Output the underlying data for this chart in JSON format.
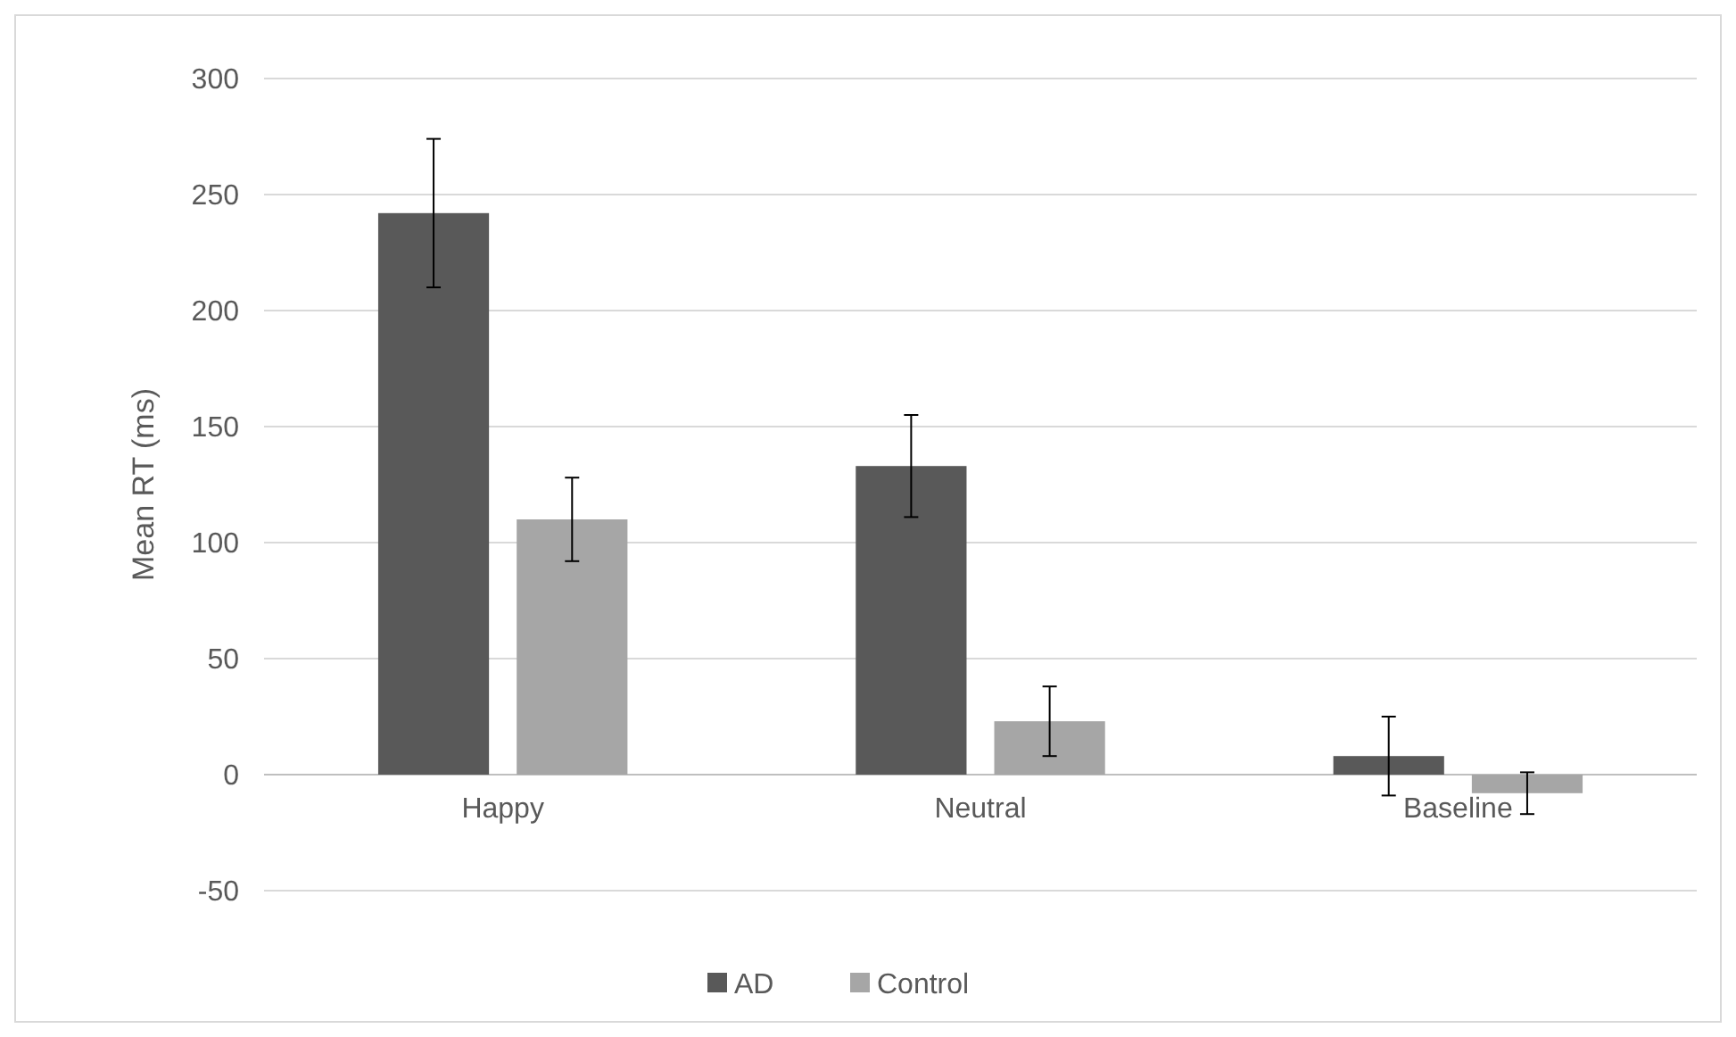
{
  "chart_data": {
    "type": "bar",
    "ylabel": "Mean RT (ms)",
    "categories": [
      "Happy",
      "Neutral",
      "Baseline"
    ],
    "series": [
      {
        "name": "AD",
        "color": "#595959",
        "values": [
          242,
          133,
          8
        ],
        "errors": [
          32,
          22,
          17
        ]
      },
      {
        "name": "Control",
        "color": "#a6a6a6",
        "values": [
          110,
          23,
          -8
        ],
        "errors": [
          18,
          15,
          9
        ]
      }
    ],
    "ylim": [
      -50,
      300
    ],
    "yticks": [
      -50,
      0,
      50,
      100,
      150,
      200,
      250,
      300
    ],
    "grid": "y",
    "legend": "bottom"
  }
}
